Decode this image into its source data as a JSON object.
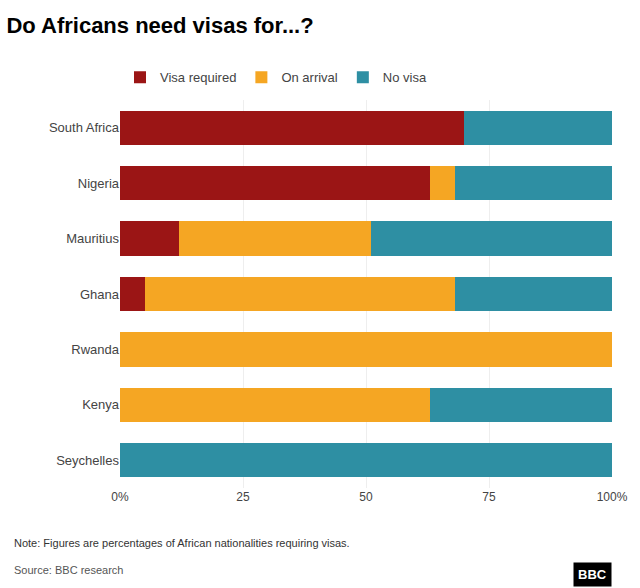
{
  "chart_data": {
    "type": "bar",
    "title": "Do Africans need visas for...?",
    "orientation": "horizontal",
    "stacked": true,
    "categories": [
      "South Africa",
      "Nigeria",
      "Mauritius",
      "Ghana",
      "Rwanda",
      "Kenya",
      "Seychelles"
    ],
    "series": [
      {
        "name": "Visa required",
        "color": "#9B1515",
        "values": [
          70,
          63,
          12,
          5,
          0,
          0,
          0
        ]
      },
      {
        "name": "On arrival",
        "color": "#F5A623",
        "values": [
          0,
          5,
          39,
          63,
          100,
          63,
          0
        ]
      },
      {
        "name": "No visa",
        "color": "#2E8FA3",
        "values": [
          30,
          32,
          49,
          32,
          0,
          37,
          100
        ]
      }
    ],
    "xlim": [
      0,
      100
    ],
    "xticks": [
      {
        "value": 0,
        "label": "0%"
      },
      25,
      50,
      75,
      {
        "value": 100,
        "label": "100%"
      }
    ],
    "grid": true,
    "legend": "upper left",
    "annotations": [
      "Note: Figures are percentages of African nationalities requiring visas.",
      "Source: BBC research",
      "BBC"
    ]
  }
}
